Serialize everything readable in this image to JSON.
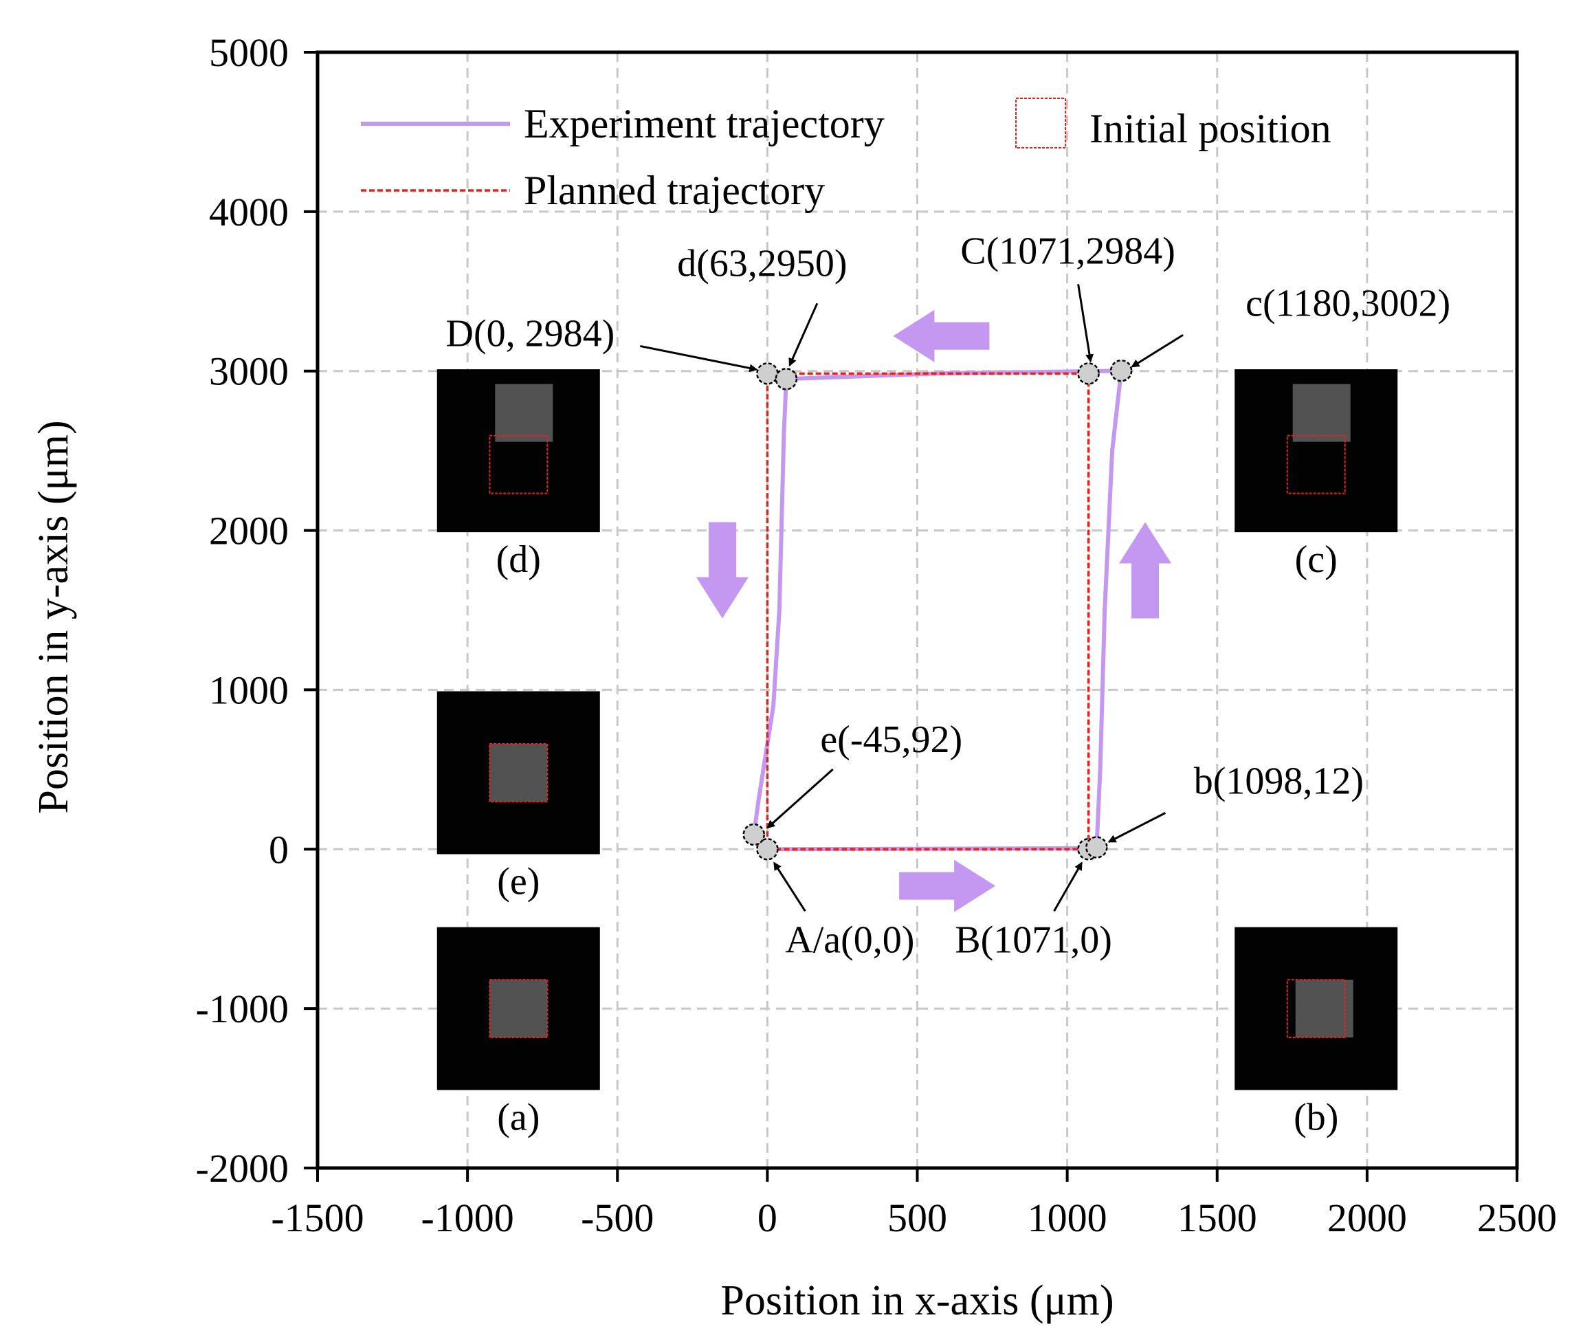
{
  "chart_data": {
    "type": "line",
    "xlabel": "Position in x-axis (μm)",
    "ylabel": "Position in y-axis (μm)",
    "xlim": [
      -1500,
      2500
    ],
    "ylim": [
      -2000,
      5000
    ],
    "xticks": [
      -1500,
      -1000,
      -500,
      0,
      500,
      1000,
      1500,
      2000,
      2500
    ],
    "yticks": [
      -2000,
      -1000,
      0,
      1000,
      2000,
      3000,
      4000,
      5000
    ],
    "xtick_labels": [
      "-1500",
      "-1000",
      "-500",
      "0",
      "500",
      "1000",
      "1500",
      "2000",
      "2500"
    ],
    "ytick_labels": [
      "-2000",
      "-1000",
      "0",
      "1000",
      "2000",
      "3000",
      "4000",
      "5000"
    ],
    "grid": true,
    "series": [
      {
        "name": "Experiment trajectory",
        "color": "#c497f0",
        "style": "solid",
        "x": [
          0,
          540,
          1071,
          1098,
          1110,
          1125,
          1150,
          1180,
          1110,
          570,
          63,
          55,
          40,
          20,
          -30,
          -45,
          -20,
          0
        ],
        "y": [
          0,
          3,
          6,
          12,
          500,
          1500,
          2500,
          3002,
          3000,
          2985,
          2950,
          2600,
          1500,
          900,
          300,
          92,
          20,
          0
        ]
      },
      {
        "name": "Planned trajectory",
        "color": "#e8221c",
        "style": "dashed",
        "x": [
          0,
          1071,
          1071,
          0,
          0
        ],
        "y": [
          0,
          0,
          2984,
          2984,
          0
        ]
      }
    ],
    "legend": {
      "position": "top",
      "entries": [
        "Experiment trajectory",
        "Planned trajectory",
        "Initial position"
      ]
    },
    "points": [
      {
        "label": "A/a(0,0)",
        "x": 0,
        "y": 0
      },
      {
        "label": "B(1071,0)",
        "x": 1071,
        "y": 0
      },
      {
        "label": "b(1098,12)",
        "x": 1098,
        "y": 12
      },
      {
        "label": "C(1071,2984)",
        "x": 1071,
        "y": 2984
      },
      {
        "label": "c(1180,3002)",
        "x": 1180,
        "y": 3002
      },
      {
        "label": "D(0, 2984)",
        "x": 0,
        "y": 2984
      },
      {
        "label": "d(63,2950)",
        "x": 63,
        "y": 2950
      },
      {
        "label": "e(-45,92)",
        "x": -45,
        "y": 92
      }
    ],
    "direction_arrows": [
      {
        "direction": "right",
        "x": 600,
        "y": -230
      },
      {
        "direction": "up",
        "x": 1260,
        "y": 1750
      },
      {
        "direction": "left",
        "x": 580,
        "y": 3220
      },
      {
        "direction": "down",
        "x": -150,
        "y": 1750
      }
    ],
    "insets": [
      {
        "label": "(a)",
        "x": -830,
        "y": -1000
      },
      {
        "label": "(b)",
        "x": 1830,
        "y": -1000
      },
      {
        "label": "(c)",
        "x": 1830,
        "y": 2500
      },
      {
        "label": "(d)",
        "x": -830,
        "y": 2500
      },
      {
        "label": "(e)",
        "x": -830,
        "y": 480
      }
    ]
  }
}
